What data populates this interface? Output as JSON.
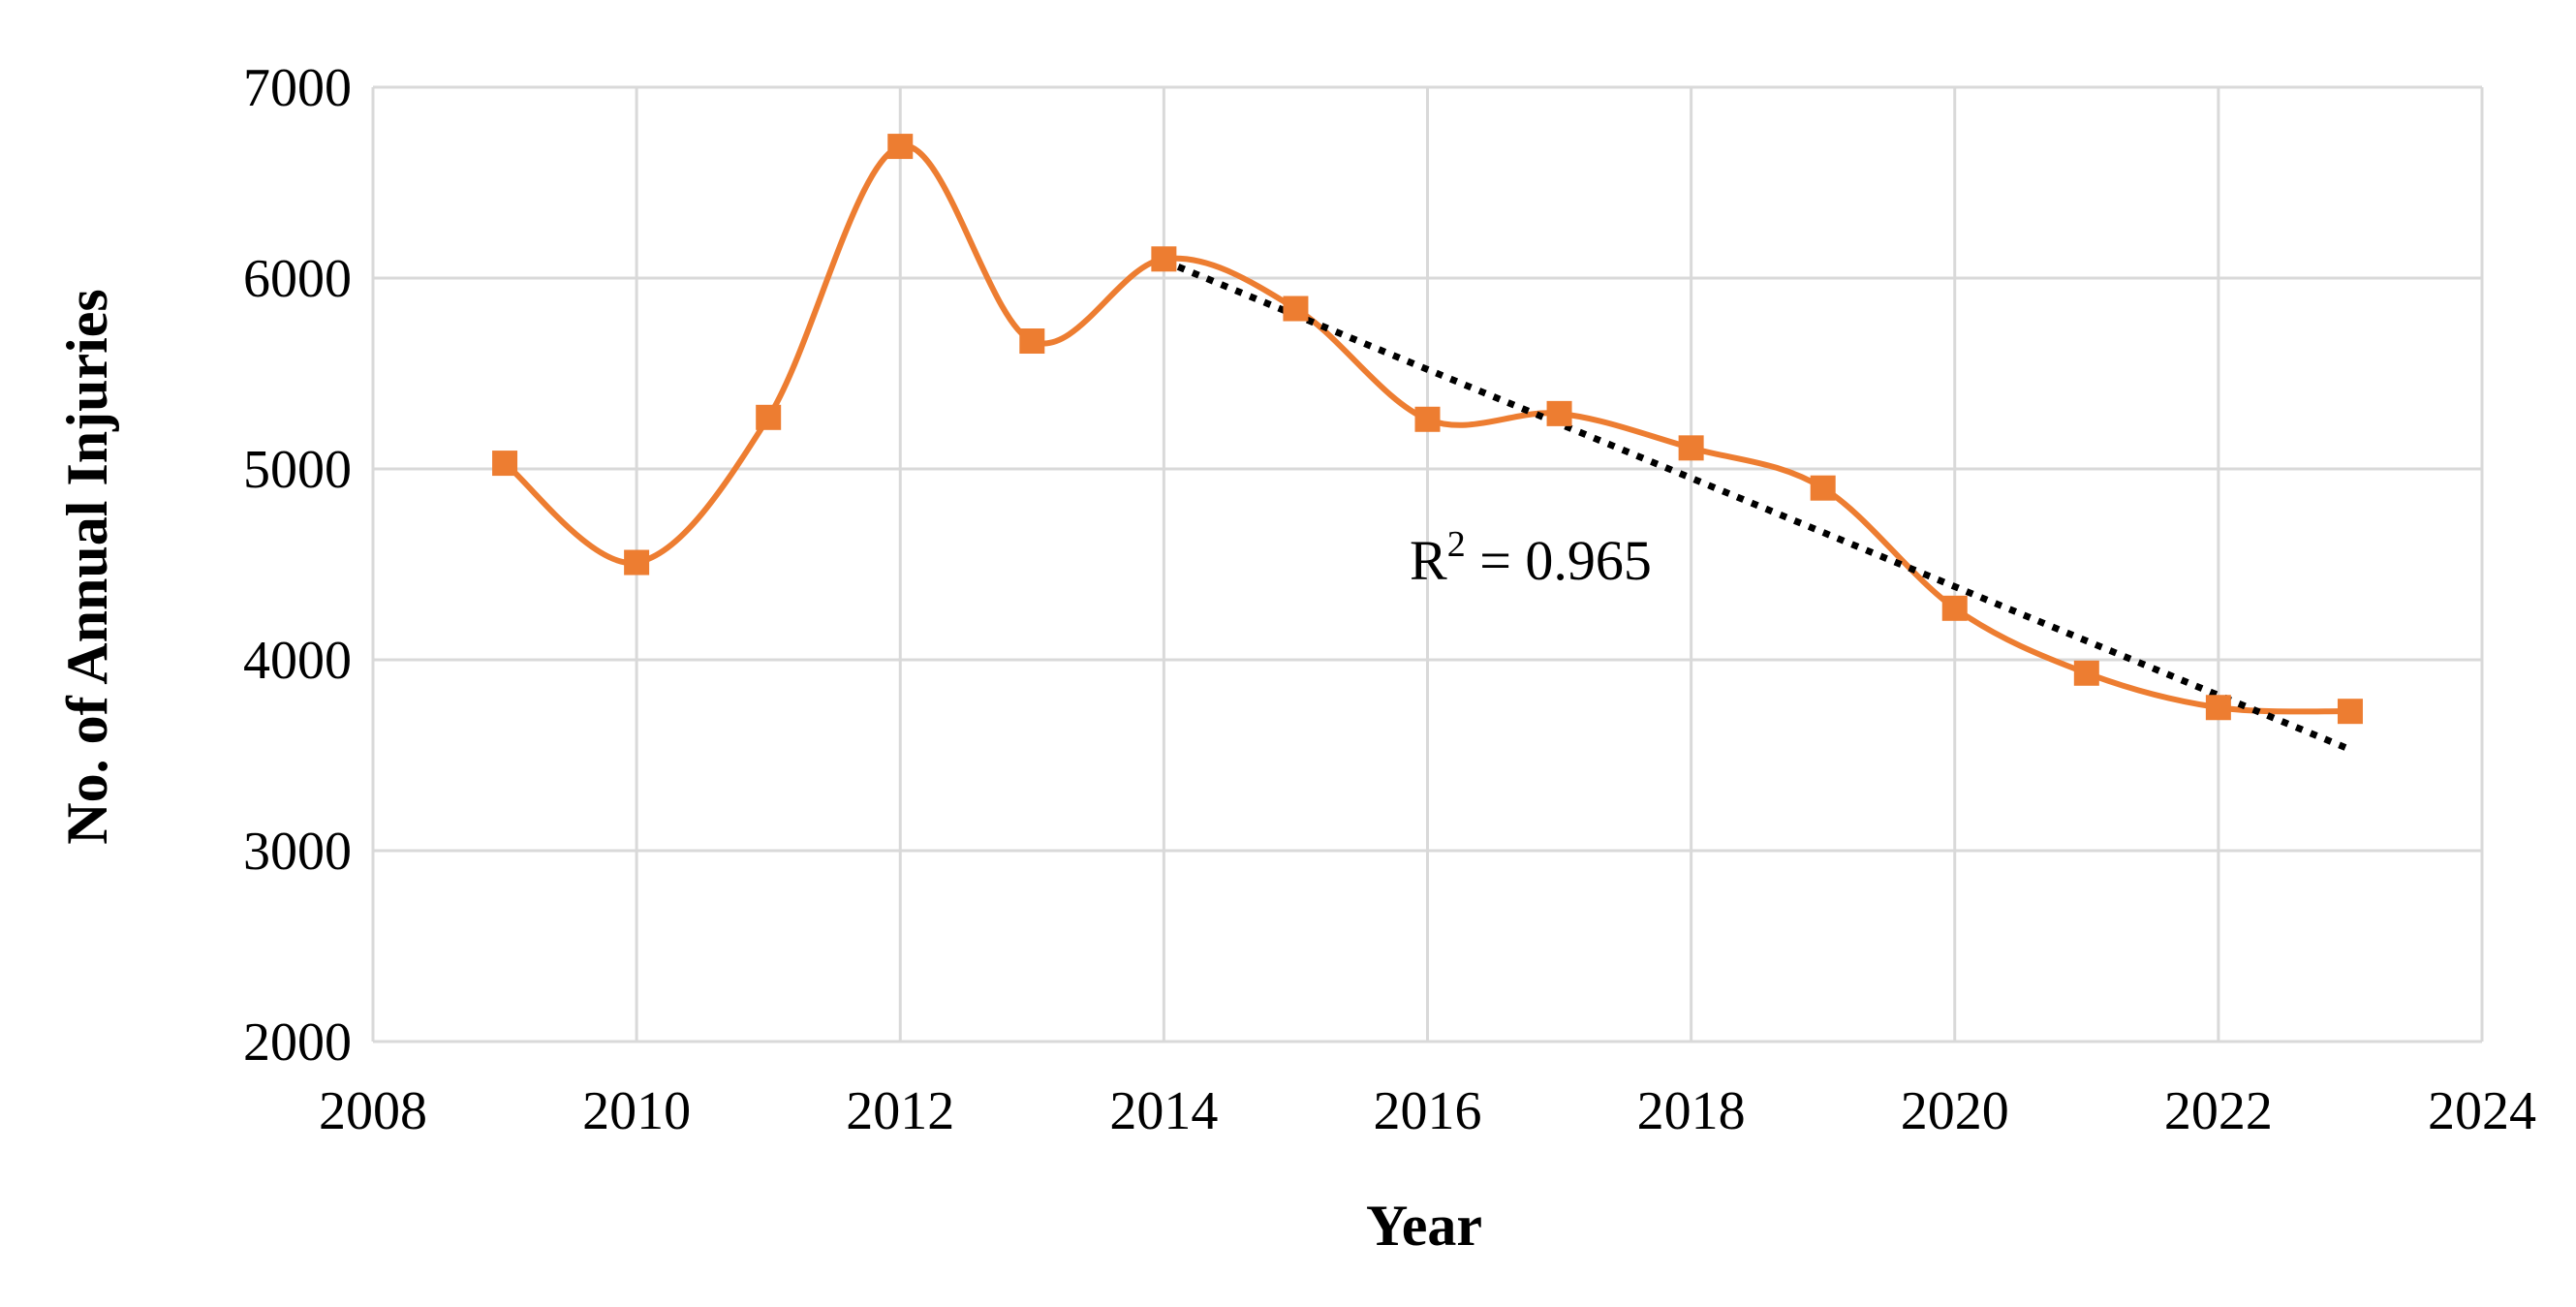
{
  "chart_data": {
    "type": "line",
    "xlabel": "Year",
    "ylabel": "No. of Annual Injuries",
    "xlim": [
      2008,
      2024
    ],
    "ylim": [
      2000,
      7000
    ],
    "x_ticks": [
      2008,
      2010,
      2012,
      2014,
      2016,
      2018,
      2020,
      2022,
      2024
    ],
    "y_ticks": [
      2000,
      3000,
      4000,
      5000,
      6000,
      7000
    ],
    "grid": true,
    "legend": "none",
    "colors": {
      "series": "#ED7D31",
      "trendline": "#000000",
      "grid": "#D9D9D9"
    },
    "series": [
      {
        "x": [
          2009,
          2010,
          2011,
          2012,
          2013,
          2014,
          2015,
          2016,
          2017,
          2018,
          2019,
          2020,
          2021,
          2022,
          2023
        ],
        "values": [
          5030,
          4510,
          5270,
          6690,
          5670,
          6100,
          5840,
          5260,
          5290,
          5110,
          4900,
          4270,
          3930,
          3750,
          3730
        ],
        "marker": "square",
        "smooth": true
      }
    ],
    "trendline": {
      "type": "linear",
      "style": "dotted",
      "x_start": 2014,
      "x_end": 2023,
      "y_start": 6090,
      "y_end": 3530,
      "annotation": {
        "prefix": "R",
        "superscript": "2",
        "suffix": " = 0.965"
      }
    }
  }
}
